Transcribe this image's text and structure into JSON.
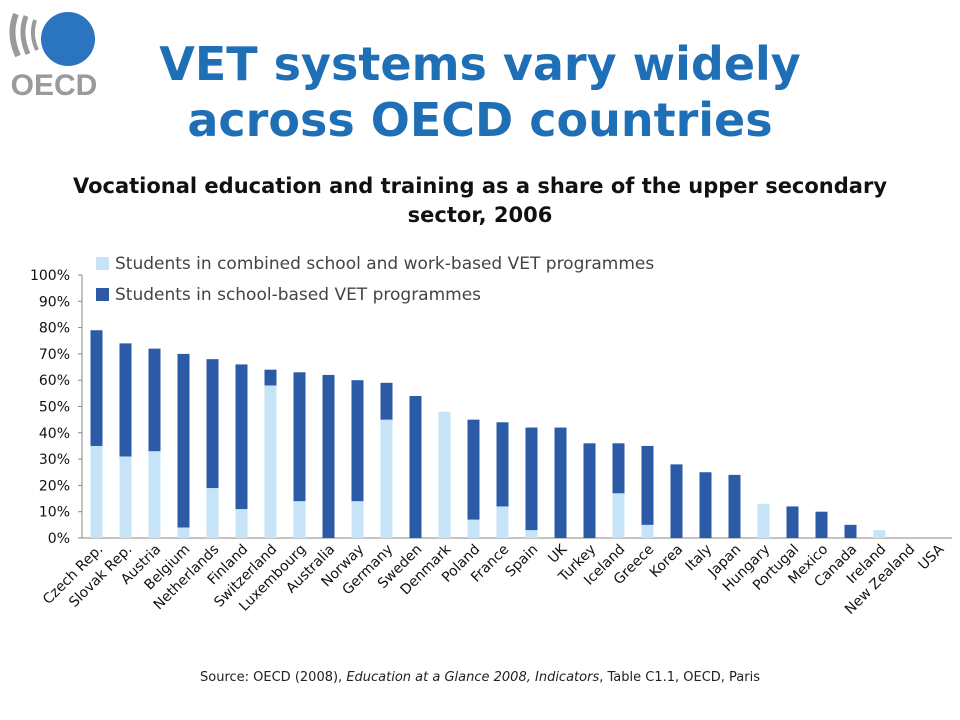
{
  "header": {
    "title_line1": "VET systems vary widely",
    "title_line2": "across OECD countries",
    "logo_text": "OECD"
  },
  "colors": {
    "title_blue": "#1f6fb6",
    "combined_series": "#c6e3f7",
    "school_series": "#2b5aa6",
    "logo_blue": "#2b74c0",
    "logo_grey": "#9a9a9a"
  },
  "source": {
    "prefix": "Source: OECD (2008), ",
    "italic": "Education at a Glance 2008, Indicators",
    "suffix": ", Table C1.1, OECD, Paris"
  },
  "chart_data": {
    "type": "bar",
    "stacked": true,
    "title": "Vocational education and training as a share of the upper secondary sector, 2006",
    "ylim": [
      0,
      100
    ],
    "yticks": [
      "0%",
      "10%",
      "20%",
      "30%",
      "40%",
      "50%",
      "60%",
      "70%",
      "80%",
      "90%",
      "100%"
    ],
    "legend_position": "top-left",
    "grid": false,
    "categories": [
      "Czech Rep.",
      "Slovak Rep.",
      "Austria",
      "Belgium",
      "Netherlands",
      "Finland",
      "Switzerland",
      "Luxembourg",
      "Australia",
      "Norway",
      "Germany",
      "Sweden",
      "Denmark",
      "Poland",
      "France",
      "Spain",
      "UK",
      "Turkey",
      "Iceland",
      "Greece",
      "Korea",
      "Italy",
      "Japan",
      "Hungary",
      "Portugal",
      "Mexico",
      "Canada",
      "Ireland",
      "New Zealand",
      "USA"
    ],
    "series": [
      {
        "name": "Students in combined school and work-based VET programmes",
        "values": [
          35,
          31,
          33,
          4,
          19,
          11,
          58,
          14,
          0,
          14,
          45,
          0,
          48,
          7,
          12,
          3,
          0,
          0,
          17,
          5,
          0,
          0,
          0,
          13,
          0,
          0,
          0,
          3,
          0,
          0
        ]
      },
      {
        "name": "Students in school-based VET programmes",
        "values": [
          44,
          43,
          39,
          66,
          49,
          55,
          6,
          49,
          62,
          46,
          14,
          54,
          0,
          38,
          32,
          39,
          42,
          36,
          19,
          30,
          28,
          25,
          24,
          0,
          12,
          10,
          5,
          0,
          0,
          0
        ]
      }
    ]
  }
}
